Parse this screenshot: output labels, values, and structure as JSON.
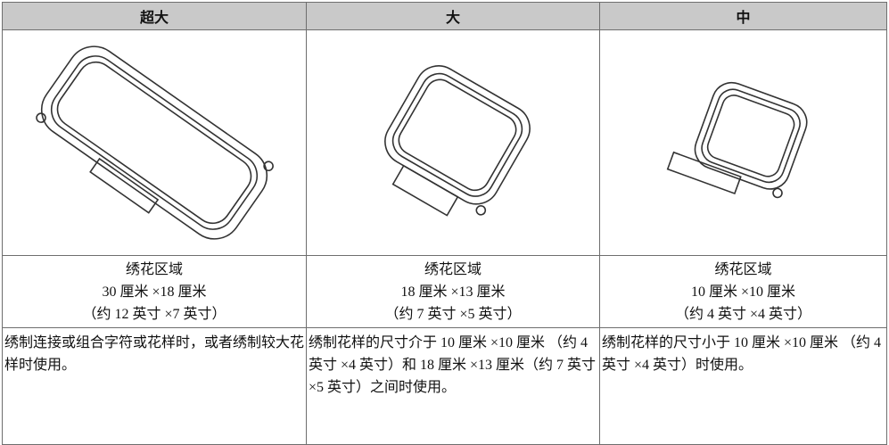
{
  "table": {
    "header": [
      "超大",
      "大",
      "中"
    ],
    "areas": [
      {
        "label": "绣花区域",
        "size": "30 厘米 ×18 厘米",
        "inch": "（约 12 英寸 ×7 英寸）"
      },
      {
        "label": "绣花区域",
        "size": "18 厘米 ×13 厘米",
        "inch": "（约 7 英寸 ×5 英寸）"
      },
      {
        "label": "绣花区域",
        "size": "10 厘米 ×10 厘米",
        "inch": "（约 4 英寸 ×4 英寸）"
      }
    ],
    "descriptions": [
      "绣制连接或组合字符或花样时，或者绣制较大花样时使用。",
      "绣制花样的尺寸介于 10 厘米 ×10 厘米 （约 4 英寸 ×4 英寸）和 18 厘米 ×13 厘米（约 7 英寸 ×5 英寸）之间时使用。",
      "绣制花样的尺寸小于 10 厘米 ×10 厘米 （约 4 英寸 ×4 英寸）时使用。"
    ]
  }
}
